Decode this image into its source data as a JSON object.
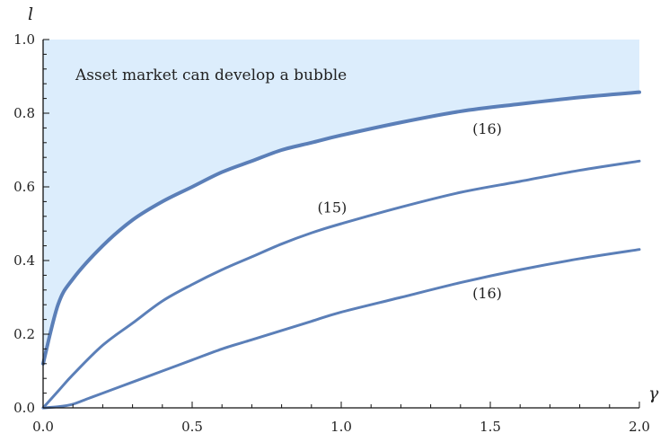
{
  "chart_data": {
    "type": "line",
    "xlabel": "γ",
    "ylabel": "l",
    "xlim": [
      0,
      2
    ],
    "ylim": [
      0,
      1
    ],
    "xticks": [
      "0.0",
      "0.5",
      "1.0",
      "1.5",
      "2.0"
    ],
    "yticks": [
      "0.0",
      "0.2",
      "0.4",
      "0.6",
      "0.8",
      "1.0"
    ],
    "grid": false,
    "shaded_region": {
      "label": "Asset market can develop a bubble",
      "bounded_below_by": "(16)",
      "color": "#dcedfc"
    },
    "line_color": "#5b7fb8",
    "series": [
      {
        "name": "(16)",
        "x": [
          0.0,
          0.05,
          0.1,
          0.2,
          0.3,
          0.4,
          0.5,
          0.6,
          0.7,
          0.8,
          0.9,
          1.0,
          1.2,
          1.4,
          1.6,
          1.8,
          2.0
        ],
        "y": [
          0.12,
          0.28,
          0.35,
          0.44,
          0.51,
          0.56,
          0.6,
          0.64,
          0.67,
          0.7,
          0.72,
          0.74,
          0.775,
          0.805,
          0.825,
          0.843,
          0.857
        ]
      },
      {
        "name": "(15)",
        "x": [
          0.0,
          0.05,
          0.1,
          0.2,
          0.3,
          0.4,
          0.5,
          0.6,
          0.7,
          0.8,
          0.9,
          1.0,
          1.2,
          1.4,
          1.6,
          1.8,
          2.0
        ],
        "y": [
          0.0,
          0.045,
          0.09,
          0.17,
          0.23,
          0.29,
          0.335,
          0.375,
          0.41,
          0.445,
          0.475,
          0.5,
          0.545,
          0.585,
          0.615,
          0.645,
          0.67
        ]
      },
      {
        "name": "(16)",
        "x": [
          0.0,
          0.05,
          0.1,
          0.15,
          0.2,
          0.3,
          0.4,
          0.5,
          0.6,
          0.7,
          0.8,
          0.9,
          1.0,
          1.2,
          1.4,
          1.6,
          1.8,
          2.0
        ],
        "y": [
          0.0,
          0.003,
          0.01,
          0.025,
          0.04,
          0.07,
          0.1,
          0.13,
          0.16,
          0.185,
          0.21,
          0.235,
          0.26,
          0.3,
          0.34,
          0.375,
          0.405,
          0.43
        ]
      }
    ]
  }
}
